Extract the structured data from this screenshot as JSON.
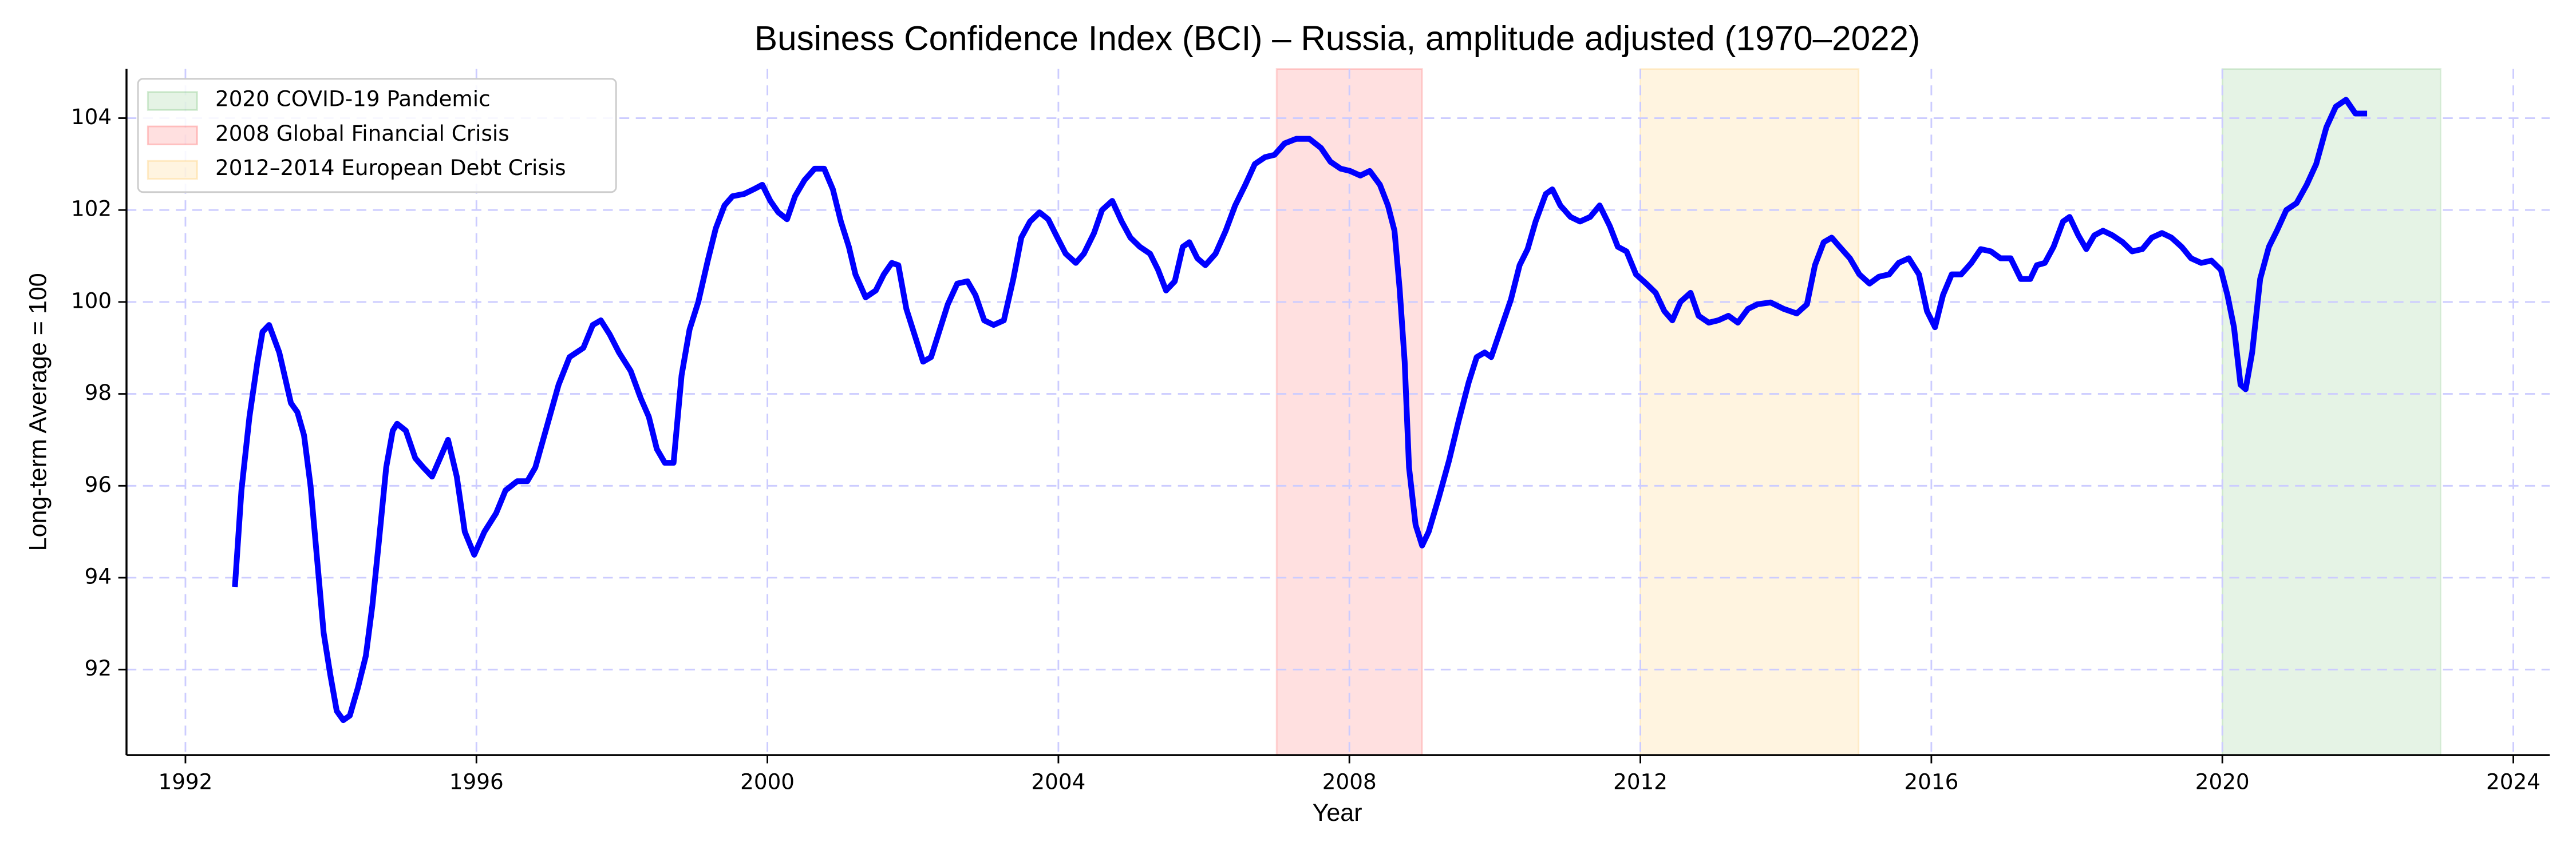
{
  "chart_data": {
    "type": "line",
    "title": "Business Confidence Index (BCI) – Russia, amplitude adjusted (1970–2022)",
    "x_label": "Year",
    "y_label": "Long-term Average = 100",
    "xlim": [
      1991.19,
      2024.5
    ],
    "ylim": [
      90.14,
      105.07
    ],
    "xticks": [
      1992,
      1996,
      2000,
      2004,
      2008,
      2012,
      2016,
      2020,
      2024
    ],
    "yticks": [
      92,
      94,
      96,
      98,
      100,
      102,
      104
    ],
    "grid": true,
    "legend": "upper left",
    "spans": [
      {
        "name": "2020 COVID-19 Pandemic",
        "start": 2020,
        "end": 2023,
        "color": "#2ca02c"
      },
      {
        "name": "2008 Global Financial Crisis",
        "start": 2007,
        "end": 2009,
        "color": "#ff0000"
      },
      {
        "name": "2012–2014 European Debt Crisis",
        "start": 2012,
        "end": 2015,
        "color": "#ffa500"
      }
    ],
    "x": [
      1992.68,
      1992.77,
      1992.88,
      1992.99,
      1993.06,
      1993.15,
      1993.29,
      1993.45,
      1993.54,
      1993.63,
      1993.72,
      1993.81,
      1993.9,
      1993.99,
      1994.08,
      1994.17,
      1994.26,
      1994.37,
      1994.48,
      1994.57,
      1994.66,
      1994.76,
      1994.85,
      1994.91,
      1995.03,
      1995.16,
      1995.27,
      1995.39,
      1995.5,
      1995.61,
      1995.73,
      1995.84,
      1995.97,
      1996.11,
      1996.27,
      1996.4,
      1996.56,
      1996.7,
      1996.81,
      1996.97,
      1997.13,
      1997.28,
      1997.47,
      1997.6,
      1997.71,
      1997.83,
      1997.96,
      1998.12,
      1998.26,
      1998.37,
      1998.48,
      1998.59,
      1998.71,
      1998.82,
      1998.93,
      1999.05,
      1999.18,
      1999.29,
      1999.41,
      1999.52,
      1999.68,
      1999.81,
      1999.93,
      2000.04,
      2000.15,
      2000.27,
      2000.38,
      2000.51,
      2000.65,
      2000.78,
      2000.9,
      2001.01,
      2001.12,
      2001.21,
      2001.35,
      2001.49,
      2001.6,
      2001.71,
      2001.8,
      2001.91,
      2002.03,
      2002.14,
      2002.25,
      2002.37,
      2002.48,
      2002.61,
      2002.75,
      2002.86,
      2002.98,
      2003.11,
      2003.25,
      2003.38,
      2003.49,
      2003.61,
      2003.74,
      2003.86,
      2003.97,
      2004.1,
      2004.24,
      2004.35,
      2004.49,
      2004.6,
      2004.74,
      2004.87,
      2004.99,
      2005.12,
      2005.26,
      2005.37,
      2005.48,
      2005.6,
      2005.71,
      2005.8,
      2005.91,
      2006.02,
      2006.16,
      2006.3,
      2006.43,
      2006.57,
      2006.7,
      2006.84,
      2006.97,
      2007.11,
      2007.27,
      2007.45,
      2007.61,
      2007.74,
      2007.88,
      2008.01,
      2008.15,
      2008.28,
      2008.42,
      2008.53,
      2008.62,
      2008.69,
      2008.76,
      2008.82,
      2008.91,
      2009.0,
      2009.09,
      2009.23,
      2009.37,
      2009.5,
      2009.64,
      2009.75,
      2009.86,
      2009.95,
      2010.09,
      2010.22,
      2010.34,
      2010.45,
      2010.56,
      2010.7,
      2010.79,
      2010.9,
      2011.04,
      2011.17,
      2011.31,
      2011.44,
      2011.58,
      2011.69,
      2011.81,
      2011.94,
      2012.08,
      2012.21,
      2012.33,
      2012.44,
      2012.55,
      2012.69,
      2012.8,
      2012.94,
      2013.07,
      2013.21,
      2013.34,
      2013.48,
      2013.61,
      2013.79,
      2013.97,
      2014.15,
      2014.29,
      2014.4,
      2014.52,
      2014.63,
      2014.74,
      2014.88,
      2015.01,
      2015.15,
      2015.28,
      2015.42,
      2015.55,
      2015.69,
      2015.83,
      2015.94,
      2016.05,
      2016.16,
      2016.28,
      2016.41,
      2016.55,
      2016.68,
      2016.82,
      2016.95,
      2017.09,
      2017.23,
      2017.36,
      2017.45,
      2017.56,
      2017.68,
      2017.81,
      2017.9,
      2018.02,
      2018.13,
      2018.24,
      2018.36,
      2018.49,
      2018.63,
      2018.76,
      2018.9,
      2019.03,
      2019.17,
      2019.3,
      2019.44,
      2019.57,
      2019.71,
      2019.85,
      2019.98,
      2020.07,
      2020.16,
      2020.25,
      2020.32,
      2020.41,
      2020.52,
      2020.64,
      2020.75,
      2020.88,
      2021.02,
      2021.16,
      2021.29,
      2021.43,
      2021.56,
      2021.7,
      2021.83,
      2021.99
    ],
    "series": [
      {
        "color": "#0000ff",
        "values": [
          93.8,
          95.9,
          97.5,
          98.7,
          99.35,
          99.5,
          98.9,
          97.8,
          97.6,
          97.1,
          96.0,
          94.4,
          92.8,
          91.9,
          91.1,
          90.9,
          91.0,
          91.6,
          92.3,
          93.4,
          94.8,
          96.4,
          97.2,
          97.35,
          97.2,
          96.6,
          96.4,
          96.2,
          96.6,
          97.0,
          96.2,
          95.0,
          94.5,
          95.0,
          95.4,
          95.9,
          96.1,
          96.1,
          96.4,
          97.3,
          98.2,
          98.8,
          99.0,
          99.5,
          99.6,
          99.3,
          98.9,
          98.5,
          97.9,
          97.5,
          96.8,
          96.5,
          96.5,
          98.4,
          99.4,
          100.0,
          100.9,
          101.6,
          102.1,
          102.3,
          102.35,
          102.45,
          102.55,
          102.2,
          101.95,
          101.8,
          102.3,
          102.65,
          102.9,
          102.9,
          102.45,
          101.75,
          101.2,
          100.6,
          100.1,
          100.25,
          100.6,
          100.85,
          100.8,
          99.85,
          99.25,
          98.7,
          98.8,
          99.4,
          99.95,
          100.4,
          100.45,
          100.15,
          99.6,
          99.5,
          99.6,
          100.5,
          101.4,
          101.75,
          101.95,
          101.8,
          101.45,
          101.05,
          100.85,
          101.05,
          101.5,
          102.0,
          102.2,
          101.75,
          101.4,
          101.2,
          101.05,
          100.7,
          100.25,
          100.45,
          101.2,
          101.3,
          100.95,
          100.8,
          101.05,
          101.55,
          102.1,
          102.55,
          103.0,
          103.15,
          103.2,
          103.45,
          103.55,
          103.55,
          103.35,
          103.05,
          102.9,
          102.85,
          102.75,
          102.85,
          102.55,
          102.1,
          101.55,
          100.3,
          98.7,
          96.4,
          95.15,
          94.7,
          95.0,
          95.75,
          96.55,
          97.4,
          98.25,
          98.8,
          98.9,
          98.8,
          99.45,
          100.05,
          100.8,
          101.15,
          101.75,
          102.35,
          102.45,
          102.1,
          101.85,
          101.75,
          101.85,
          102.1,
          101.65,
          101.2,
          101.1,
          100.6,
          100.4,
          100.2,
          99.8,
          99.6,
          100.0,
          100.2,
          99.7,
          99.55,
          99.6,
          99.7,
          99.55,
          99.85,
          99.95,
          99.99,
          99.85,
          99.75,
          99.95,
          100.8,
          101.3,
          101.4,
          101.2,
          100.95,
          100.6,
          100.4,
          100.55,
          100.6,
          100.85,
          100.95,
          100.6,
          99.8,
          99.45,
          100.15,
          100.6,
          100.6,
          100.85,
          101.15,
          101.1,
          100.95,
          100.95,
          100.5,
          100.5,
          100.8,
          100.85,
          101.2,
          101.75,
          101.85,
          101.45,
          101.15,
          101.45,
          101.55,
          101.45,
          101.3,
          101.1,
          101.15,
          101.4,
          101.5,
          101.4,
          101.2,
          100.95,
          100.85,
          100.9,
          100.7,
          100.15,
          99.45,
          98.2,
          98.1,
          98.9,
          100.5,
          101.2,
          101.55,
          102.0,
          102.15,
          102.55,
          103.0,
          103.8,
          104.25,
          104.4,
          104.1,
          104.1
        ]
      }
    ]
  }
}
